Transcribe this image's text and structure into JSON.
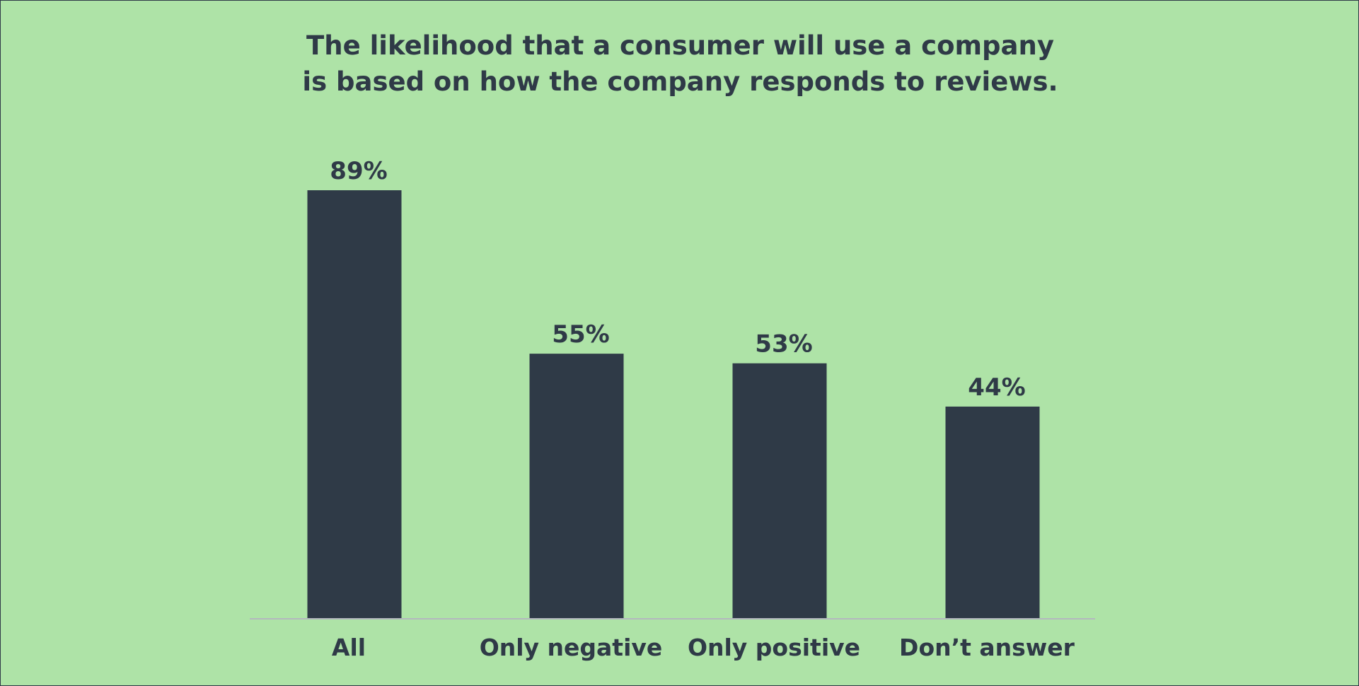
{
  "chart_data": {
    "type": "bar",
    "title_lines": [
      "The likelihood that a consumer will use a company",
      "is based on how the company responds to reviews."
    ],
    "categories": [
      "All",
      "Only negative",
      "Only positive",
      "Don’t answer"
    ],
    "values": [
      89,
      55,
      53,
      44
    ],
    "data_labels": [
      "89%",
      "55%",
      "53%",
      "44%"
    ],
    "unit": "%",
    "xlabel": "",
    "ylabel": "",
    "ylim": [
      0,
      100
    ],
    "grid": false,
    "legend": "none",
    "colors": {
      "background": "#aee3a7",
      "bar": "#2f3a47",
      "text": "#2f3a47",
      "baseline": "#b3b8be"
    }
  }
}
